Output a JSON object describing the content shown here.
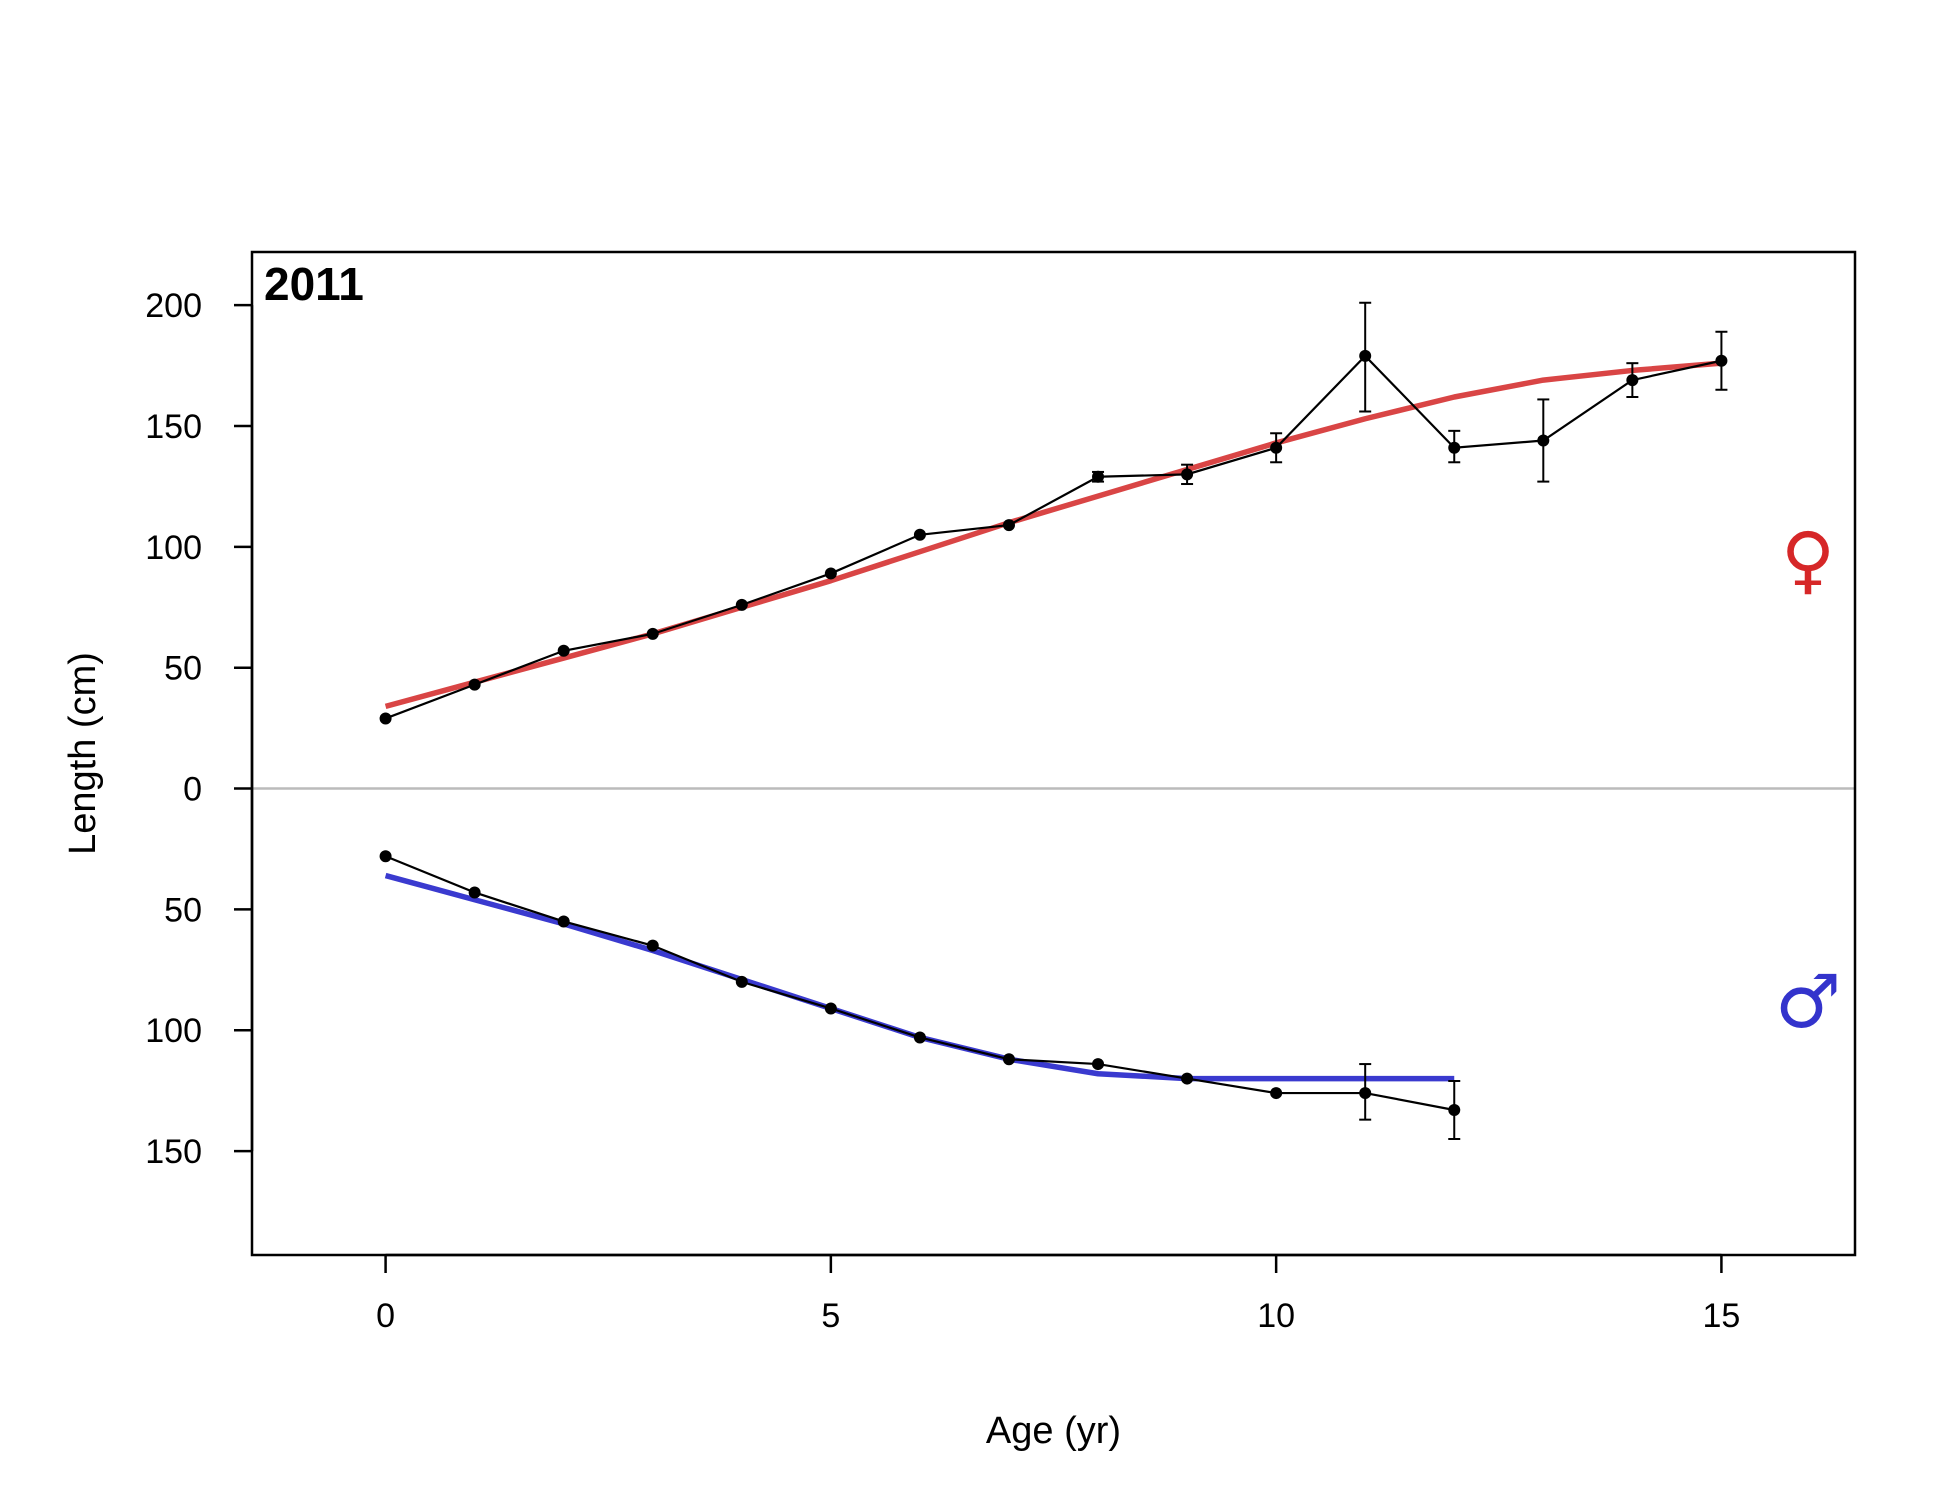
{
  "chart_data": {
    "type": "line",
    "panel_label": "2011",
    "xlabel": "Age (yr)",
    "ylabel": "Length (cm)",
    "xlim": [
      -1.5,
      16.5
    ],
    "ylim": [
      -193,
      222
    ],
    "x_ticks": [
      0,
      5,
      10,
      15
    ],
    "y_ticks": [
      {
        "value": 200,
        "label": "200"
      },
      {
        "value": 150,
        "label": "150"
      },
      {
        "value": 100,
        "label": "100"
      },
      {
        "value": 50,
        "label": "50"
      },
      {
        "value": 0,
        "label": "0"
      },
      {
        "value": -50,
        "label": "50"
      },
      {
        "value": -100,
        "label": "100"
      },
      {
        "value": -150,
        "label": "150"
      }
    ],
    "zero_line": true,
    "sex_symbols": [
      {
        "symbol": "♀",
        "color": "#d62728",
        "y": 95
      },
      {
        "symbol": "♂",
        "color": "#3333cc",
        "y": -88
      }
    ],
    "series": [
      {
        "sex": "female",
        "observed_color": "#000000",
        "fit_color": "#d94545",
        "observed": [
          {
            "x": 0,
            "y": 29,
            "lo": 29,
            "hi": 29
          },
          {
            "x": 1,
            "y": 43,
            "lo": 43,
            "hi": 43
          },
          {
            "x": 2,
            "y": 57,
            "lo": 57,
            "hi": 57
          },
          {
            "x": 3,
            "y": 64,
            "lo": 64,
            "hi": 64
          },
          {
            "x": 4,
            "y": 76,
            "lo": 76,
            "hi": 76
          },
          {
            "x": 5,
            "y": 89,
            "lo": 89,
            "hi": 89
          },
          {
            "x": 6,
            "y": 105,
            "lo": 105,
            "hi": 105
          },
          {
            "x": 7,
            "y": 109,
            "lo": 109,
            "hi": 109
          },
          {
            "x": 8,
            "y": 129,
            "lo": 127,
            "hi": 131
          },
          {
            "x": 9,
            "y": 130,
            "lo": 126,
            "hi": 134
          },
          {
            "x": 10,
            "y": 141,
            "lo": 135,
            "hi": 147
          },
          {
            "x": 11,
            "y": 179,
            "lo": 156,
            "hi": 201
          },
          {
            "x": 12,
            "y": 141,
            "lo": 135,
            "hi": 148
          },
          {
            "x": 13,
            "y": 144,
            "lo": 127,
            "hi": 161
          },
          {
            "x": 14,
            "y": 169,
            "lo": 162,
            "hi": 176
          },
          {
            "x": 15,
            "y": 177,
            "lo": 165,
            "hi": 189
          }
        ],
        "fit": {
          "x": [
            0,
            1,
            2,
            3,
            4,
            5,
            6,
            7,
            8,
            9,
            10,
            11,
            12,
            13,
            14,
            15
          ],
          "y": [
            34,
            44,
            54,
            64,
            75,
            86,
            98,
            110,
            121,
            132,
            143,
            153,
            162,
            169,
            173,
            176
          ]
        }
      },
      {
        "sex": "male",
        "observed_color": "#000000",
        "fit_color": "#3a3acf",
        "observed": [
          {
            "x": 0,
            "y": -28,
            "lo": -28,
            "hi": -28
          },
          {
            "x": 1,
            "y": -43,
            "lo": -43,
            "hi": -43
          },
          {
            "x": 2,
            "y": -55,
            "lo": -55,
            "hi": -55
          },
          {
            "x": 3,
            "y": -65,
            "lo": -65,
            "hi": -65
          },
          {
            "x": 4,
            "y": -80,
            "lo": -80,
            "hi": -80
          },
          {
            "x": 5,
            "y": -91,
            "lo": -91,
            "hi": -91
          },
          {
            "x": 6,
            "y": -103,
            "lo": -103,
            "hi": -103
          },
          {
            "x": 7,
            "y": -112,
            "lo": -112,
            "hi": -112
          },
          {
            "x": 8,
            "y": -114,
            "lo": -114,
            "hi": -114
          },
          {
            "x": 9,
            "y": -120,
            "lo": -120,
            "hi": -120
          },
          {
            "x": 10,
            "y": -126,
            "lo": -126,
            "hi": -126
          },
          {
            "x": 11,
            "y": -126,
            "lo": -137,
            "hi": -114
          },
          {
            "x": 12,
            "y": -133,
            "lo": -145,
            "hi": -121
          }
        ],
        "fit": {
          "x": [
            0,
            1,
            2,
            3,
            4,
            5,
            6,
            7,
            8,
            9,
            10,
            11,
            12
          ],
          "y": [
            -36,
            -46,
            -56,
            -67,
            -79,
            -91,
            -103,
            -112,
            -118,
            -120,
            -120,
            -120,
            -120
          ]
        }
      }
    ]
  }
}
